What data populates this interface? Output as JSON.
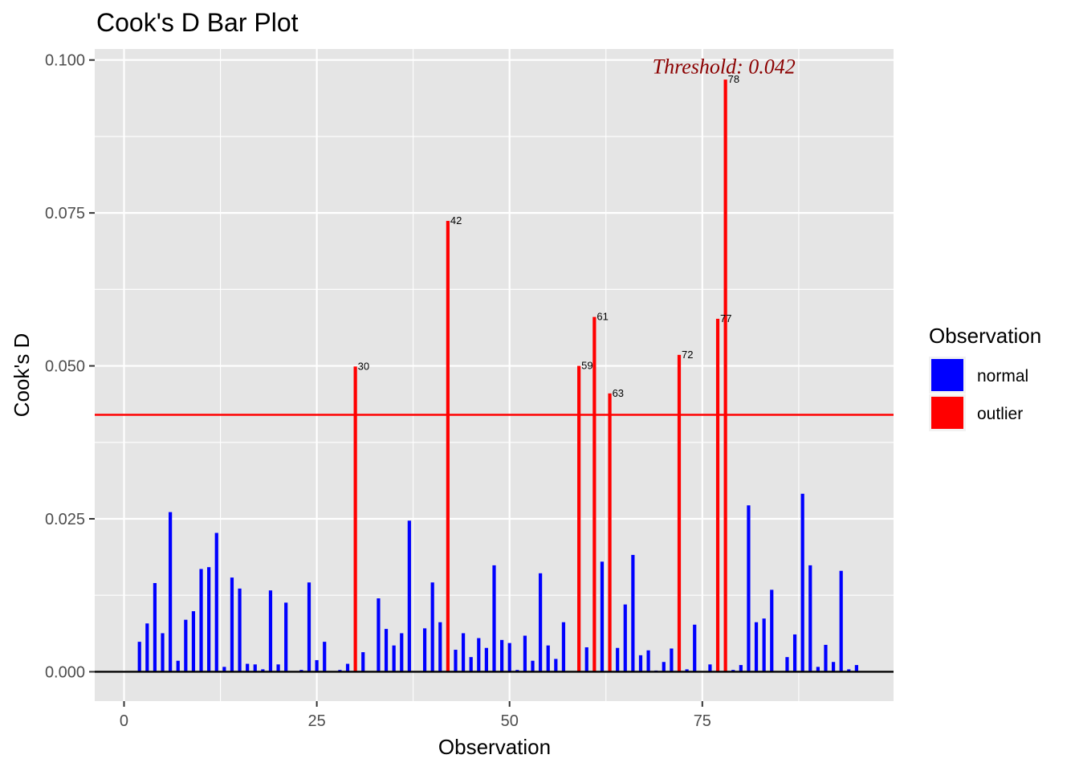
{
  "chart_data": {
    "type": "bar",
    "title": "Cook's D Bar Plot",
    "xlabel": "Observation",
    "ylabel": "Cook's D",
    "xlim": [
      -3.8,
      99.8
    ],
    "ylim": [
      -0.0048,
      0.1018
    ],
    "xticks": [
      0,
      25,
      50,
      75
    ],
    "xtick_labels": [
      "0",
      "25",
      "50",
      "75"
    ],
    "yticks": [
      0,
      0.025,
      0.05,
      0.075,
      0.1
    ],
    "ytick_labels": [
      "0.000",
      "0.025",
      "0.050",
      "0.075",
      "0.100"
    ],
    "grid": true,
    "threshold": 0.042,
    "threshold_label": "Threshold: 0.042",
    "legend": {
      "title": "Observation",
      "placement": "right",
      "items": [
        {
          "label": "normal",
          "color": "#0000ff"
        },
        {
          "label": "outlier",
          "color": "#ff0000"
        }
      ]
    },
    "colors": {
      "normal": "#0000ff",
      "outlier": "#ff0000",
      "threshold_line": "#ff0000",
      "threshold_text": "#8b0000",
      "panel": "#e5e5e5",
      "grid": "#ffffff"
    },
    "x": [
      1,
      2,
      3,
      4,
      5,
      6,
      7,
      8,
      9,
      10,
      11,
      12,
      13,
      14,
      15,
      16,
      17,
      18,
      19,
      20,
      21,
      22,
      23,
      24,
      25,
      26,
      27,
      28,
      29,
      30,
      31,
      32,
      33,
      34,
      35,
      36,
      37,
      38,
      39,
      40,
      41,
      42,
      43,
      44,
      45,
      46,
      47,
      48,
      49,
      50,
      51,
      52,
      53,
      54,
      55,
      56,
      57,
      58,
      59,
      60,
      61,
      62,
      63,
      64,
      65,
      66,
      67,
      68,
      69,
      70,
      71,
      72,
      73,
      74,
      75,
      76,
      77,
      78,
      79,
      80,
      81,
      82,
      83,
      84,
      85,
      86,
      87,
      88,
      89,
      90,
      91,
      92,
      93,
      94,
      95
    ],
    "values": [
      0,
      0.0049,
      0.0079,
      0.0145,
      0.0063,
      0.0261,
      0.0018,
      0.0085,
      0.0099,
      0.0168,
      0.0171,
      0.0227,
      0.0008,
      0.0154,
      0.0136,
      0.0013,
      0.0012,
      0.0004,
      0.0133,
      0.0012,
      0.0113,
      0,
      0.0003,
      0.0146,
      0.0019,
      0.0049,
      0,
      0.0003,
      0.0013,
      0.0499,
      0.0032,
      0,
      0.012,
      0.007,
      0.0043,
      0.0063,
      0.0247,
      0,
      0.0071,
      0.0146,
      0.0081,
      0.0737,
      0.0036,
      0.0063,
      0.0024,
      0.0055,
      0.0039,
      0.0174,
      0.0052,
      0.0047,
      0.0003,
      0.0059,
      0.0018,
      0.0161,
      0.0043,
      0.0021,
      0.0081,
      0,
      0.05,
      0.004,
      0.058,
      0.018,
      0.0455,
      0.0039,
      0.011,
      0.0191,
      0.0027,
      0.0035,
      0.0002,
      0.0016,
      0.0038,
      0.0518,
      0.0004,
      0.0077,
      0,
      0.0012,
      0.0577,
      0.0968,
      0.0003,
      0.0011,
      0.0272,
      0.0081,
      0.0087,
      0.0134,
      0,
      0.0024,
      0.0061,
      0.0291,
      0.0174,
      0.0008,
      0.0044,
      0.0016,
      0.0165,
      0.0004,
      0.0011
    ],
    "outliers": [
      30,
      42,
      59,
      61,
      63,
      72,
      77,
      78
    ],
    "outlier_labels": [
      "30",
      "42",
      "59",
      "61",
      "63",
      "72",
      "77",
      "78"
    ]
  }
}
